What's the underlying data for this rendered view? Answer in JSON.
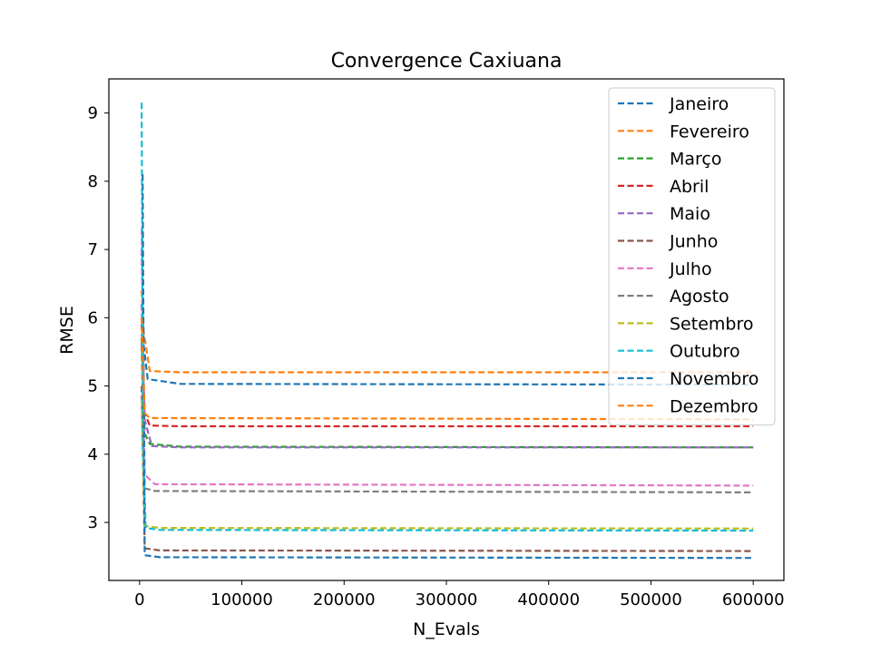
{
  "chart_data": {
    "type": "line",
    "title": "Convergence Caxiuana",
    "xlabel": "N_Evals",
    "ylabel": "RMSE",
    "xlim": [
      -30000,
      630000
    ],
    "ylim": [
      2.15,
      9.5
    ],
    "xticks": [
      0,
      100000,
      200000,
      300000,
      400000,
      500000,
      600000
    ],
    "yticks": [
      3,
      4,
      5,
      6,
      7,
      8,
      9
    ],
    "line_style": "dashed",
    "grid": false,
    "legend_position": "top-right",
    "series": [
      {
        "name": "Janeiro",
        "color": "#1f77b4",
        "points": [
          [
            2000,
            7.0
          ],
          [
            4000,
            5.6
          ],
          [
            8000,
            5.1
          ],
          [
            40000,
            5.03
          ],
          [
            600000,
            5.02
          ]
        ]
      },
      {
        "name": "Fevereiro",
        "color": "#ff7f0e",
        "points": [
          [
            2000,
            6.4
          ],
          [
            4000,
            5.8
          ],
          [
            10000,
            5.22
          ],
          [
            40000,
            5.2
          ],
          [
            600000,
            5.2
          ]
        ]
      },
      {
        "name": "Março",
        "color": "#2ca02c",
        "points": [
          [
            2000,
            5.7
          ],
          [
            5000,
            4.3
          ],
          [
            10000,
            4.15
          ],
          [
            40000,
            4.11
          ],
          [
            600000,
            4.1
          ]
        ]
      },
      {
        "name": "Abril",
        "color": "#d62728",
        "points": [
          [
            2000,
            5.9
          ],
          [
            5000,
            4.6
          ],
          [
            10000,
            4.42
          ],
          [
            40000,
            4.41
          ],
          [
            600000,
            4.41
          ]
        ]
      },
      {
        "name": "Maio",
        "color": "#9467bd",
        "points": [
          [
            2000,
            6.2
          ],
          [
            5000,
            4.5
          ],
          [
            12000,
            4.12
          ],
          [
            40000,
            4.1
          ],
          [
            600000,
            4.1
          ]
        ]
      },
      {
        "name": "Junho",
        "color": "#8c564b",
        "points": [
          [
            2000,
            5.0
          ],
          [
            5000,
            2.62
          ],
          [
            20000,
            2.59
          ],
          [
            600000,
            2.58
          ]
        ]
      },
      {
        "name": "Julho",
        "color": "#e377c2",
        "points": [
          [
            2000,
            7.3
          ],
          [
            5000,
            3.7
          ],
          [
            15000,
            3.56
          ],
          [
            600000,
            3.54
          ]
        ]
      },
      {
        "name": "Agosto",
        "color": "#7f7f7f",
        "points": [
          [
            2000,
            5.6
          ],
          [
            5000,
            3.5
          ],
          [
            15000,
            3.46
          ],
          [
            600000,
            3.44
          ]
        ]
      },
      {
        "name": "Setembro",
        "color": "#bcbd22",
        "points": [
          [
            2000,
            4.8
          ],
          [
            5000,
            2.95
          ],
          [
            20000,
            2.92
          ],
          [
            600000,
            2.91
          ]
        ]
      },
      {
        "name": "Outubro",
        "color": "#17becf",
        "points": [
          [
            2000,
            9.15
          ],
          [
            3500,
            4.0
          ],
          [
            6000,
            2.92
          ],
          [
            20000,
            2.89
          ],
          [
            600000,
            2.88
          ]
        ]
      },
      {
        "name": "Novembro",
        "color": "#1f77b4",
        "points": [
          [
            3000,
            8.1
          ],
          [
            5000,
            2.52
          ],
          [
            20000,
            2.49
          ],
          [
            600000,
            2.48
          ]
        ]
      },
      {
        "name": "Dezembro",
        "color": "#ff7f0e",
        "points": [
          [
            2000,
            6.0
          ],
          [
            5000,
            4.6
          ],
          [
            10000,
            4.53
          ],
          [
            600000,
            4.51
          ]
        ]
      }
    ]
  }
}
